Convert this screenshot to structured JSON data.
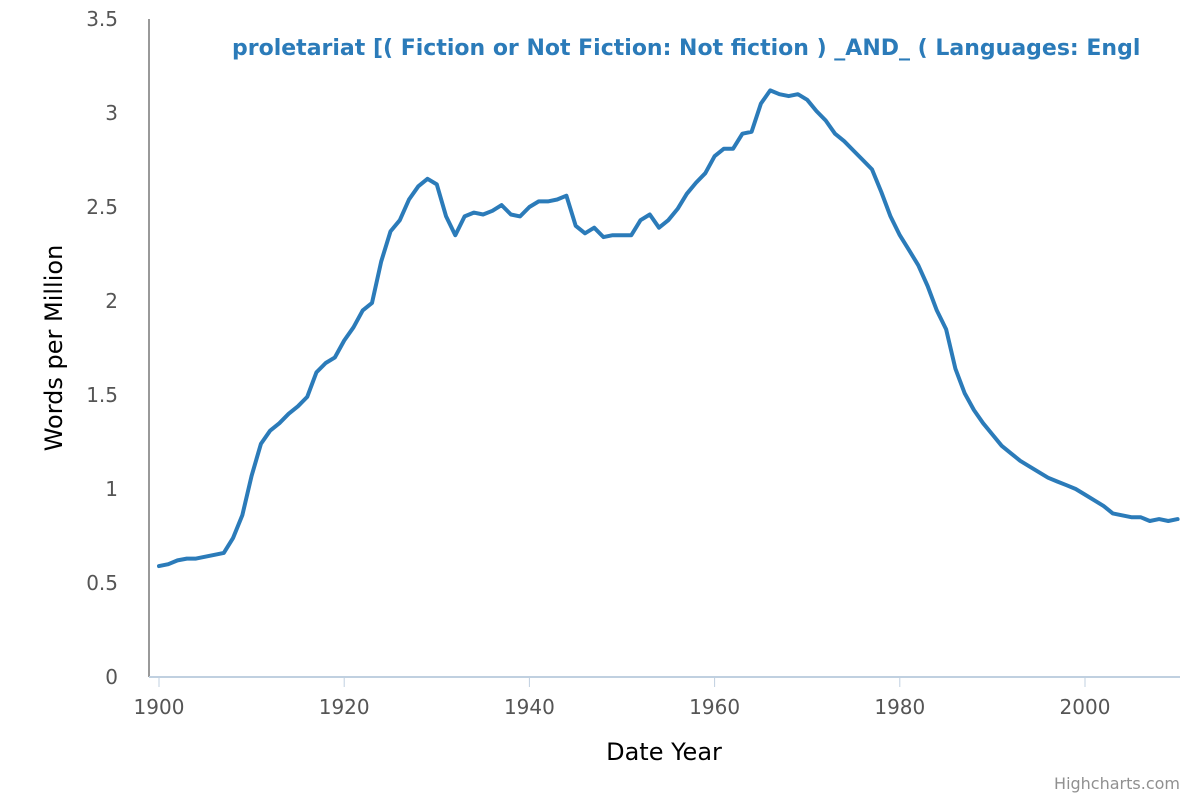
{
  "chart_data": {
    "type": "line",
    "series_label": "proletariat [( Fiction or Not Fiction: Not fiction ) _AND_ ( Languages: Engl",
    "xlabel": "Date Year",
    "ylabel": "Words per Million",
    "xlim": [
      1900,
      2011
    ],
    "ylim": [
      0,
      3.5
    ],
    "x_ticks": [
      "1900",
      "1920",
      "1940",
      "1960",
      "1980",
      "2000"
    ],
    "y_ticks": [
      "0",
      "0.5",
      "1",
      "1.5",
      "2",
      "2.5",
      "3",
      "3.5"
    ],
    "grid": false,
    "series": [
      {
        "color": "#2b7bb9",
        "x": [
          1900,
          1901,
          1902,
          1903,
          1904,
          1905,
          1906,
          1907,
          1908,
          1909,
          1910,
          1911,
          1912,
          1913,
          1914,
          1915,
          1916,
          1917,
          1918,
          1919,
          1920,
          1921,
          1922,
          1923,
          1924,
          1925,
          1926,
          1927,
          1928,
          1929,
          1930,
          1931,
          1932,
          1933,
          1934,
          1935,
          1936,
          1937,
          1938,
          1939,
          1940,
          1941,
          1942,
          1943,
          1944,
          1945,
          1946,
          1947,
          1948,
          1949,
          1950,
          1951,
          1952,
          1953,
          1954,
          1955,
          1956,
          1957,
          1958,
          1959,
          1960,
          1961,
          1962,
          1963,
          1964,
          1965,
          1966,
          1967,
          1968,
          1969,
          1970,
          1971,
          1972,
          1973,
          1974,
          1975,
          1976,
          1977,
          1978,
          1979,
          1980,
          1981,
          1982,
          1983,
          1984,
          1985,
          1986,
          1987,
          1988,
          1989,
          1990,
          1991,
          1992,
          1993,
          1994,
          1995,
          1996,
          1997,
          1998,
          1999,
          2000,
          2001,
          2002,
          2003,
          2004,
          2005,
          2006,
          2007,
          2008,
          2009,
          2010
        ],
        "values": [
          0.59,
          0.6,
          0.62,
          0.63,
          0.63,
          0.64,
          0.65,
          0.66,
          0.74,
          0.86,
          1.07,
          1.24,
          1.31,
          1.35,
          1.4,
          1.44,
          1.49,
          1.62,
          1.67,
          1.7,
          1.79,
          1.86,
          1.95,
          1.99,
          2.21,
          2.37,
          2.43,
          2.54,
          2.61,
          2.65,
          2.62,
          2.45,
          2.35,
          2.45,
          2.47,
          2.46,
          2.48,
          2.51,
          2.46,
          2.45,
          2.5,
          2.53,
          2.53,
          2.54,
          2.56,
          2.4,
          2.36,
          2.39,
          2.34,
          2.35,
          2.35,
          2.35,
          2.43,
          2.46,
          2.39,
          2.43,
          2.49,
          2.57,
          2.63,
          2.68,
          2.77,
          2.81,
          2.81,
          2.89,
          2.9,
          3.05,
          3.12,
          3.1,
          3.09,
          3.1,
          3.07,
          3.01,
          2.96,
          2.89,
          2.85,
          2.8,
          2.75,
          2.7,
          2.58,
          2.45,
          2.35,
          2.27,
          2.19,
          2.08,
          1.95,
          1.85,
          1.64,
          1.51,
          1.42,
          1.35,
          1.29,
          1.23,
          1.19,
          1.15,
          1.12,
          1.09,
          1.06,
          1.04,
          1.02,
          1.0,
          0.97,
          0.94,
          0.91,
          0.87,
          0.86,
          0.85,
          0.85,
          0.83,
          0.84,
          0.83,
          0.84
        ]
      }
    ]
  },
  "credits": "Highcharts.com"
}
